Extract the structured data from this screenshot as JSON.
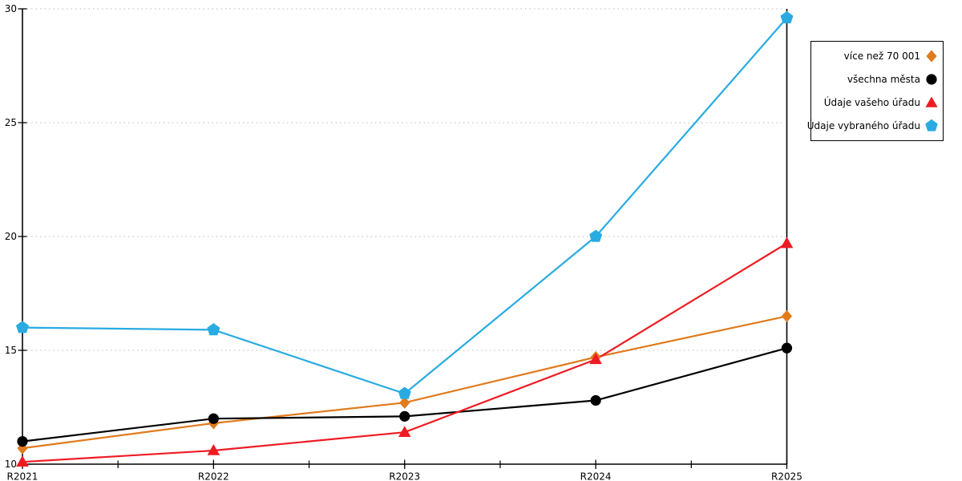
{
  "chart_data": {
    "type": "line",
    "title": "",
    "xlabel": "",
    "ylabel": "",
    "categories": [
      "R2021",
      "R2022",
      "R2023",
      "R2024",
      "R2025"
    ],
    "y_ticks": [
      10,
      15,
      20,
      25,
      30
    ],
    "ylim": [
      10,
      30
    ],
    "grid": "horizontal dotted gridlines at y=15,20,25,30",
    "legend_position": "top-right outside plot",
    "series": [
      {
        "name": "více než 70 001",
        "color": "#E07B1E",
        "marker": "diamond",
        "values": [
          10.7,
          11.8,
          12.7,
          14.7,
          16.5
        ]
      },
      {
        "name": "všechna města",
        "color": "#000000",
        "marker": "circle",
        "values": [
          11.0,
          12.0,
          12.1,
          12.8,
          15.1
        ]
      },
      {
        "name": "Údaje vašeho úřadu",
        "color": "#EF1B23",
        "marker": "triangle",
        "values": [
          10.1,
          10.6,
          11.4,
          14.6,
          19.7
        ]
      },
      {
        "name": "Údaje vybraného úřadu",
        "color": "#29ABE2",
        "marker": "pentagon",
        "values": [
          16.0,
          15.9,
          13.1,
          20.0,
          29.6
        ]
      }
    ]
  },
  "colors": {
    "background": "#ffffff",
    "axis": "#000000",
    "gridline": "#c8c8c8",
    "legend_border": "#000000"
  }
}
